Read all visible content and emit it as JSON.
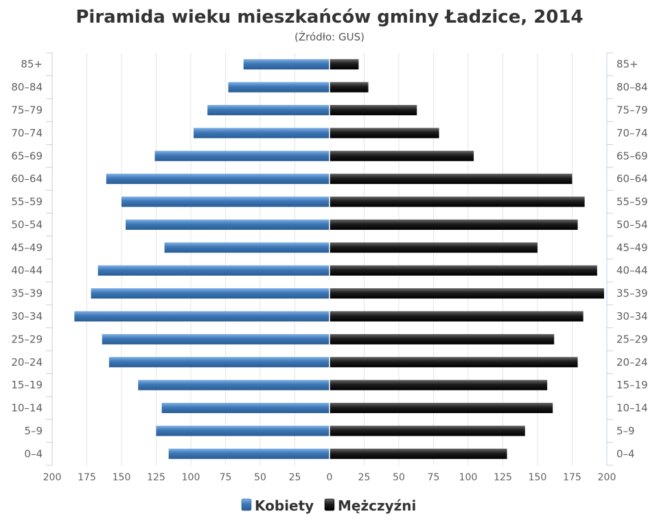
{
  "chart_data": {
    "type": "bar",
    "orientation": "horizontal",
    "title": "Piramida wieku mieszkańców gminy Ładzice, 2014",
    "subtitle": "(Źródło: GUS)",
    "categories": [
      "0–4",
      "5–9",
      "10–14",
      "15–19",
      "20–24",
      "25–29",
      "30–34",
      "35–39",
      "40–44",
      "45–49",
      "50–54",
      "55–59",
      "60–64",
      "65–69",
      "70–74",
      "75–79",
      "80–84",
      "85+"
    ],
    "series": [
      {
        "name": "Kobiety",
        "side": "left",
        "color": "#3d77b5",
        "values": [
          116,
          125,
          121,
          138,
          159,
          164,
          184,
          172,
          167,
          119,
          147,
          150,
          161,
          126,
          98,
          88,
          73,
          62
        ]
      },
      {
        "name": "Mężczyźni",
        "side": "right",
        "color": "#1a1a1a",
        "values": [
          128,
          141,
          161,
          157,
          179,
          162,
          183,
          198,
          193,
          150,
          179,
          184,
          175,
          104,
          79,
          63,
          28,
          21
        ]
      }
    ],
    "x_ticks": [
      "200",
      "175",
      "150",
      "125",
      "100",
      "75",
      "50",
      "25",
      "0",
      "25",
      "50",
      "75",
      "100",
      "125",
      "150",
      "175",
      "200"
    ],
    "xlim": [
      -200,
      200
    ],
    "grid": true,
    "legend_position": "bottom-center"
  }
}
